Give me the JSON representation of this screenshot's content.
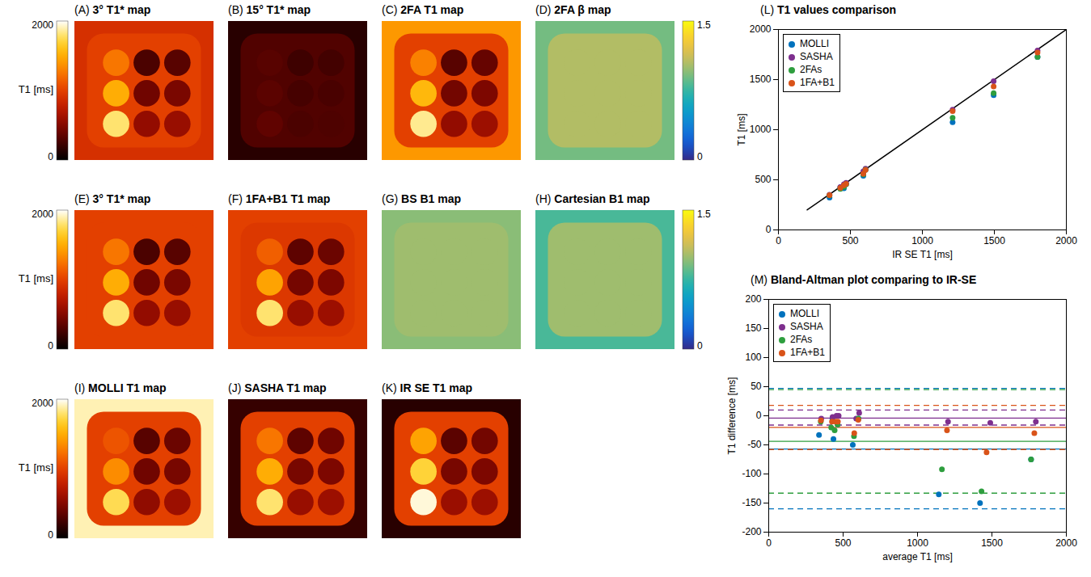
{
  "chart_data": [
    {
      "type": "heatmap",
      "label": "(A)",
      "title": "3° T1* map",
      "color_bar": "T1",
      "outside": 900,
      "phantom": 1000,
      "vials": [
        [
          1250,
          280,
          330
        ],
        [
          1500,
          420,
          460
        ],
        [
          1800,
          560,
          580
        ]
      ]
    },
    {
      "type": "heatmap",
      "label": "(B)",
      "title": "15° T1* map",
      "color_bar": "T1",
      "outside": 150,
      "phantom": 300,
      "vials": [
        [
          330,
          230,
          250
        ],
        [
          340,
          260,
          270
        ],
        [
          360,
          280,
          290
        ]
      ]
    },
    {
      "type": "heatmap",
      "label": "(C)",
      "title": "2FA T1 map",
      "color_bar": "T1",
      "outside": 1400,
      "phantom": 1000,
      "vials": [
        [
          1300,
          330,
          380
        ],
        [
          1550,
          430,
          470
        ],
        [
          1850,
          560,
          600
        ]
      ]
    },
    {
      "type": "heatmap",
      "label": "(D)",
      "title": "2FA β map",
      "color_bar": "B1",
      "outside": 0.9,
      "phantom": 1.05,
      "vials": [
        [
          1.05,
          1.05,
          1.05
        ],
        [
          1.05,
          1.05,
          1.05
        ],
        [
          1.05,
          1.05,
          1.05
        ]
      ]
    },
    {
      "type": "heatmap",
      "label": "(E)",
      "title": "3° T1* map",
      "color_bar": "T1",
      "outside": 1000,
      "phantom": 1000,
      "vials": [
        [
          1250,
          280,
          330
        ],
        [
          1500,
          420,
          460
        ],
        [
          1800,
          560,
          580
        ]
      ]
    },
    {
      "type": "heatmap",
      "label": "(F)",
      "title": "1FA+B1 T1 map",
      "color_bar": "T1",
      "outside": 1000,
      "phantom": 950,
      "vials": [
        [
          1150,
          350,
          400
        ],
        [
          1450,
          440,
          470
        ],
        [
          1800,
          580,
          600
        ]
      ]
    },
    {
      "type": "heatmap",
      "label": "(G)",
      "title": "BS B1 map",
      "color_bar": "B1",
      "outside": 0.95,
      "phantom": 1.0,
      "vials": [
        [
          1.0,
          1.0,
          1.0
        ],
        [
          1.0,
          1.0,
          1.0
        ],
        [
          1.0,
          1.0,
          1.0
        ]
      ]
    },
    {
      "type": "heatmap",
      "label": "(H)",
      "title": "Cartesian B1 map",
      "color_bar": "B1",
      "outside": 0.8,
      "phantom": 1.0,
      "vials": [
        [
          1.0,
          1.0,
          1.0
        ],
        [
          1.0,
          1.0,
          1.0
        ],
        [
          1.0,
          1.0,
          1.0
        ]
      ]
    },
    {
      "type": "heatmap",
      "label": "(I)",
      "title": "MOLLI T1 map",
      "color_bar": "T1",
      "outside": 1900,
      "phantom": 1000,
      "vials": [
        [
          1100,
          330,
          400
        ],
        [
          1350,
          420,
          450
        ],
        [
          1750,
          550,
          600
        ]
      ]
    },
    {
      "type": "heatmap",
      "label": "(J)",
      "title": "SASHA T1 map",
      "color_bar": "T1",
      "outside": 200,
      "phantom": 1000,
      "vials": [
        [
          1250,
          350,
          420
        ],
        [
          1500,
          450,
          470
        ],
        [
          1800,
          580,
          600
        ]
      ]
    },
    {
      "type": "heatmap",
      "label": "(K)",
      "title": "IR SE T1 map",
      "color_bar": "T1",
      "outside": 150,
      "phantom": 1000,
      "vials": [
        [
          1450,
          340,
          430
        ],
        [
          1700,
          450,
          470
        ],
        [
          1950,
          590,
          600
        ]
      ]
    },
    {
      "type": "scatter",
      "label": "(L)",
      "title": "T1 values comparison",
      "x_label": "IR SE T1 [ms]",
      "y_label": "T1 [ms]",
      "xlim": [
        0,
        2000
      ],
      "xticks": [
        0,
        500,
        1000,
        1500,
        2000
      ],
      "ylim": [
        0,
        2000
      ],
      "yticks": [
        0,
        500,
        1000,
        1500,
        2000
      ],
      "legend": "top-left",
      "reference_line": {
        "x": [
          200,
          2000
        ],
        "y": [
          200,
          2000
        ],
        "color": "#000000"
      },
      "series": [
        {
          "name": "MOLLI",
          "color": "#0072bd",
          "x": [
            355,
            430,
            455,
            470,
            590,
            605,
            1210,
            1495,
            1800
          ],
          "values": [
            322,
            425,
            415,
            455,
            540,
            600,
            1075,
            1345,
            1725
          ]
        },
        {
          "name": "SASHA",
          "color": "#7e2f8e",
          "x": [
            355,
            430,
            455,
            470,
            590,
            605,
            1210,
            1495,
            1800
          ],
          "values": [
            350,
            428,
            455,
            470,
            585,
            610,
            1200,
            1483,
            1790
          ]
        },
        {
          "name": "2FAs",
          "color": "#2e9e3e",
          "x": [
            355,
            430,
            455,
            470,
            590,
            605,
            1210,
            1495,
            1800
          ],
          "values": [
            345,
            410,
            430,
            455,
            555,
            600,
            1118,
            1365,
            1725
          ]
        },
        {
          "name": "1FA+B1",
          "color": "#d95319",
          "x": [
            355,
            430,
            455,
            470,
            590,
            605,
            1210,
            1495,
            1800
          ],
          "values": [
            347,
            420,
            445,
            460,
            560,
            598,
            1185,
            1432,
            1770
          ]
        }
      ]
    },
    {
      "type": "scatter",
      "label": "(M)",
      "title": "Bland-Altman plot comparing to IR-SE",
      "x_label": "average T1 [ms]",
      "y_label": "T1 difference [ms]",
      "xlim": [
        0,
        2000
      ],
      "xticks": [
        0,
        500,
        1000,
        1500,
        2000
      ],
      "ylim": [
        -200,
        200
      ],
      "yticks": [
        -200,
        -150,
        -100,
        -50,
        0,
        50,
        100,
        150,
        200
      ],
      "legend": "top-left",
      "series": [
        {
          "name": "MOLLI",
          "color": "#0072bd",
          "x": [
            338,
            428,
            435,
            463,
            565,
            603,
            1143,
            1420,
            1763
          ],
          "values": [
            -33,
            -5,
            -40,
            -15,
            -50,
            -5,
            -135,
            -150,
            -75
          ],
          "mean": -57,
          "limits": [
            -160,
            47
          ]
        },
        {
          "name": "SASHA",
          "color": "#7e2f8e",
          "x": [
            353,
            429,
            455,
            470,
            588,
            608,
            1205,
            1489,
            1795
          ],
          "values": [
            -5,
            -2,
            0,
            0,
            -5,
            5,
            -10,
            -12,
            -10
          ],
          "mean": -4,
          "limits": [
            -16,
            10
          ]
        },
        {
          "name": "2FAs",
          "color": "#2e9e3e",
          "x": [
            350,
            420,
            443,
            463,
            573,
            603,
            1164,
            1430,
            1763
          ],
          "values": [
            -10,
            -20,
            -25,
            -15,
            -35,
            -5,
            -92,
            -130,
            -75
          ],
          "mean": -44,
          "limits": [
            -133,
            45
          ]
        },
        {
          "name": "1FA+B1",
          "color": "#d95319",
          "x": [
            351,
            425,
            450,
            465,
            575,
            602,
            1198,
            1464,
            1785
          ],
          "values": [
            -8,
            -10,
            -10,
            -10,
            -30,
            -7,
            -25,
            -63,
            -30
          ],
          "mean": -20,
          "limits": [
            -58,
            18
          ]
        }
      ]
    }
  ],
  "color_bars": {
    "T1": {
      "label": "T1 [ms]",
      "range": [
        0,
        2000
      ],
      "ticks": [
        0,
        2000
      ]
    },
    "B1": {
      "range": [
        0,
        1.5
      ],
      "ticks": [
        0,
        1.5
      ]
    }
  }
}
